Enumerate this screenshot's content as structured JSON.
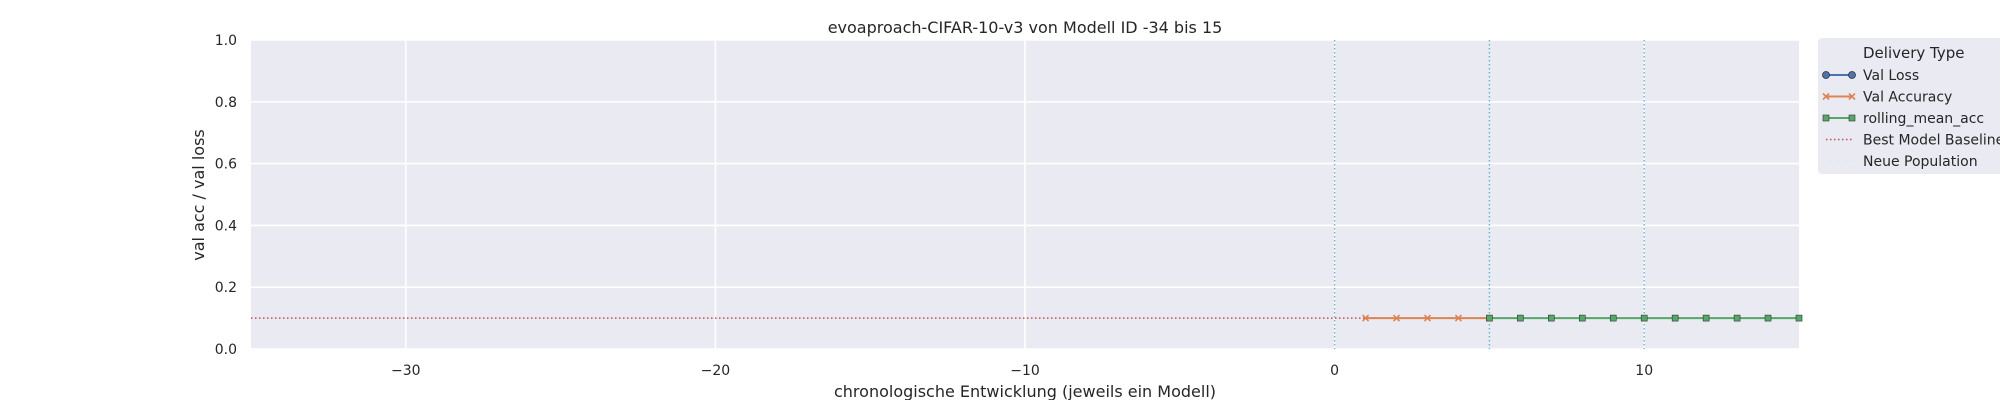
{
  "chart_data": {
    "type": "line",
    "title": "evoaproach-CIFAR-10-v3 von Modell ID -34 bis 15",
    "xlabel": "chronologische Entwicklung (jeweils ein Modell)",
    "ylabel": "val acc / val loss",
    "xlim": [
      -35,
      15
    ],
    "ylim": [
      0,
      1.0
    ],
    "x_ticks": [
      -30,
      -20,
      -10,
      0,
      10
    ],
    "x_tick_labels": [
      "−30",
      "−20",
      "−10",
      "0",
      "10"
    ],
    "y_ticks": [
      0.0,
      0.2,
      0.4,
      0.6,
      0.8,
      1.0
    ],
    "y_tick_labels": [
      "0.0",
      "0.2",
      "0.4",
      "0.6",
      "0.8",
      "1.0"
    ],
    "grid": true,
    "legend_placement": "outside-right-top",
    "legend_title": "Delivery Type",
    "series": [
      {
        "name": "Val Loss",
        "color": "#4c72b0",
        "marker": "circle",
        "x": [],
        "y": []
      },
      {
        "name": "Val Accuracy",
        "color": "#dd8452",
        "marker": "x",
        "x": [
          1,
          2,
          3,
          4,
          5
        ],
        "y": [
          0.1,
          0.1,
          0.1,
          0.1,
          0.1
        ]
      },
      {
        "name": "rolling_mean_acc",
        "color": "#55a868",
        "marker": "square",
        "x": [
          5,
          6,
          7,
          8,
          9,
          10,
          11,
          12,
          13,
          14,
          15
        ],
        "y": [
          0.1,
          0.1,
          0.1,
          0.1,
          0.1,
          0.1,
          0.1,
          0.1,
          0.1,
          0.1,
          0.1
        ]
      }
    ],
    "baseline": {
      "name": "Best Model Baseline",
      "color": "#c44e52",
      "y": 0.1
    },
    "population_lines": {
      "name": "Neue Population",
      "color": "#64b5cd",
      "x": [
        0,
        5,
        10
      ]
    }
  }
}
